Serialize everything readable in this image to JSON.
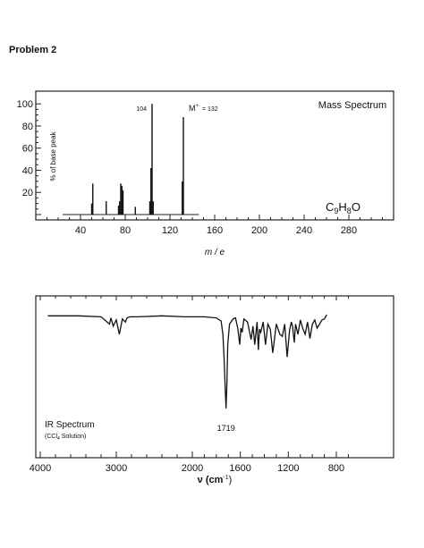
{
  "page": {
    "heading": "Problem 2"
  },
  "chart_data": [
    {
      "type": "bar",
      "ylabel": "% of base peak",
      "xlabel": "m / e",
      "xlim": [
        0,
        320
      ],
      "ylim": [
        0,
        105
      ],
      "xticks": [
        "40",
        "80",
        "120",
        "160",
        "200",
        "240",
        "280"
      ],
      "yticks": [
        "20",
        "40",
        "60",
        "80",
        "100"
      ],
      "panel_label": "Mass Spectrum",
      "formula": {
        "main": "C",
        "sub1": "9",
        "mid": "H",
        "sub2": "8",
        "end": "O"
      },
      "peak_labels": [
        {
          "text": "104",
          "x": 104
        },
        {
          "text": "M",
          "sup": "+·",
          "rest": " = 132",
          "x": 132
        }
      ],
      "x": [
        50,
        51,
        63,
        74,
        75,
        76,
        77,
        78,
        89,
        102,
        103,
        104,
        105,
        131,
        132
      ],
      "values": [
        10,
        28,
        12,
        8,
        12,
        28,
        26,
        22,
        7,
        12,
        42,
        100,
        12,
        30,
        88
      ]
    },
    {
      "type": "line",
      "xlabel": "ν (cm⁻¹)",
      "xlabel_main": "ν (cm",
      "xlabel_sup": "-1",
      "xlabel_end": ")",
      "xlim": [
        4000,
        600
      ],
      "xticks": [
        "4000",
        "3000",
        "2000",
        "1600",
        "1200",
        "800"
      ],
      "panel_label": "IR Spectrum",
      "solvent": {
        "pre": "(CCl",
        "sub": "4",
        "post": " Solution)"
      },
      "peak_labels": [
        {
          "text": "1719",
          "x": 1719
        }
      ],
      "ylim": [
        0,
        100
      ],
      "y_meaning": "% transmittance",
      "x": [
        3900,
        3500,
        3200,
        3090,
        3070,
        3040,
        3000,
        2960,
        2920,
        2880,
        2860,
        2820,
        2720,
        2400,
        2100,
        1900,
        1800,
        1760,
        1745,
        1735,
        1725,
        1719,
        1712,
        1705,
        1690,
        1660,
        1640,
        1620,
        1605,
        1595,
        1585,
        1570,
        1540,
        1510,
        1495,
        1480,
        1460,
        1450,
        1440,
        1430,
        1410,
        1390,
        1370,
        1350,
        1330,
        1300,
        1270,
        1250,
        1230,
        1210,
        1190,
        1175,
        1165,
        1150,
        1140,
        1120,
        1100,
        1080,
        1060,
        1040,
        1020,
        1000,
        980,
        960,
        940,
        920,
        900,
        880
      ],
      "values": [
        98,
        98,
        97,
        90,
        96,
        88,
        94,
        80,
        95,
        92,
        96,
        97,
        97,
        98,
        97,
        97,
        96,
        93,
        80,
        55,
        25,
        8,
        30,
        70,
        90,
        95,
        96,
        85,
        70,
        86,
        82,
        95,
        92,
        75,
        88,
        70,
        92,
        65,
        85,
        82,
        92,
        70,
        90,
        85,
        62,
        90,
        80,
        78,
        90,
        58,
        84,
        92,
        88,
        72,
        90,
        80,
        94,
        86,
        80,
        92,
        76,
        90,
        94,
        86,
        90,
        94,
        95,
        99
      ]
    }
  ]
}
